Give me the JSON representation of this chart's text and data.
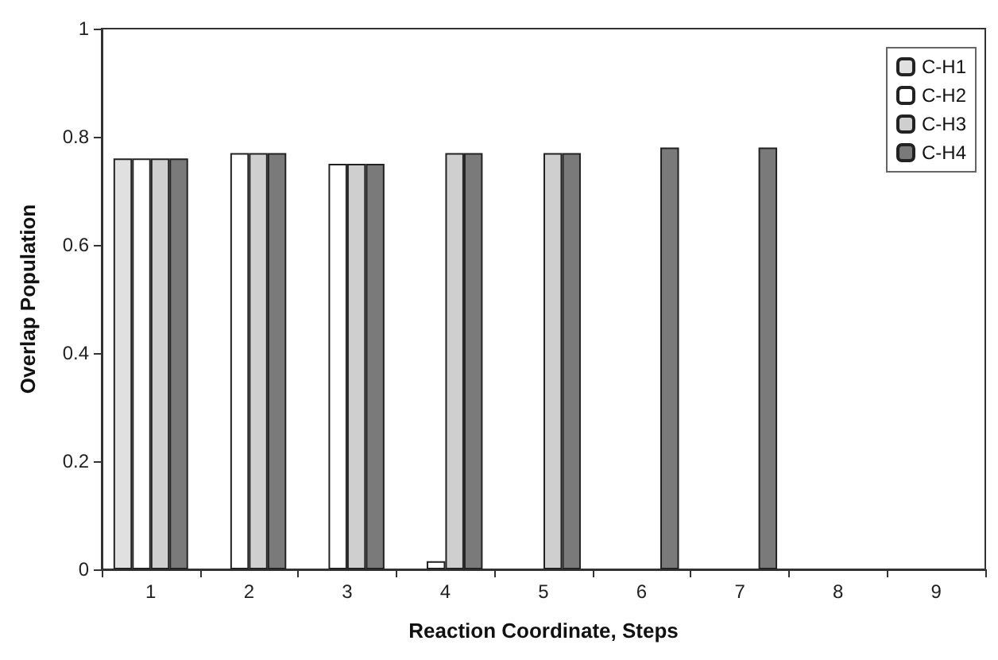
{
  "chart_data": {
    "type": "bar",
    "xlabel": "Reaction Coordinate, Steps",
    "ylabel": "Overlap Population",
    "categories": [
      "1",
      "2",
      "3",
      "4",
      "5",
      "6",
      "7",
      "8",
      "9"
    ],
    "series": [
      {
        "name": "C-H1",
        "color": "#e0e0e0",
        "values": [
          0.76,
          null,
          null,
          null,
          null,
          null,
          null,
          null,
          null
        ]
      },
      {
        "name": "C-H2",
        "color": "#ffffff",
        "values": [
          0.76,
          0.77,
          0.75,
          0.015,
          null,
          null,
          null,
          null,
          null
        ]
      },
      {
        "name": "C-H3",
        "color": "#cfcfcf",
        "values": [
          0.76,
          0.77,
          0.75,
          0.77,
          0.77,
          null,
          null,
          null,
          null
        ]
      },
      {
        "name": "C-H4",
        "color": "#7a7a7a",
        "values": [
          0.76,
          0.77,
          0.75,
          0.77,
          0.77,
          0.78,
          0.78,
          null,
          null
        ]
      }
    ],
    "ylim": [
      0,
      1
    ],
    "yticks": [
      0,
      0.2,
      0.4,
      0.6,
      0.8,
      1
    ],
    "grid": false,
    "legend": "top right"
  }
}
